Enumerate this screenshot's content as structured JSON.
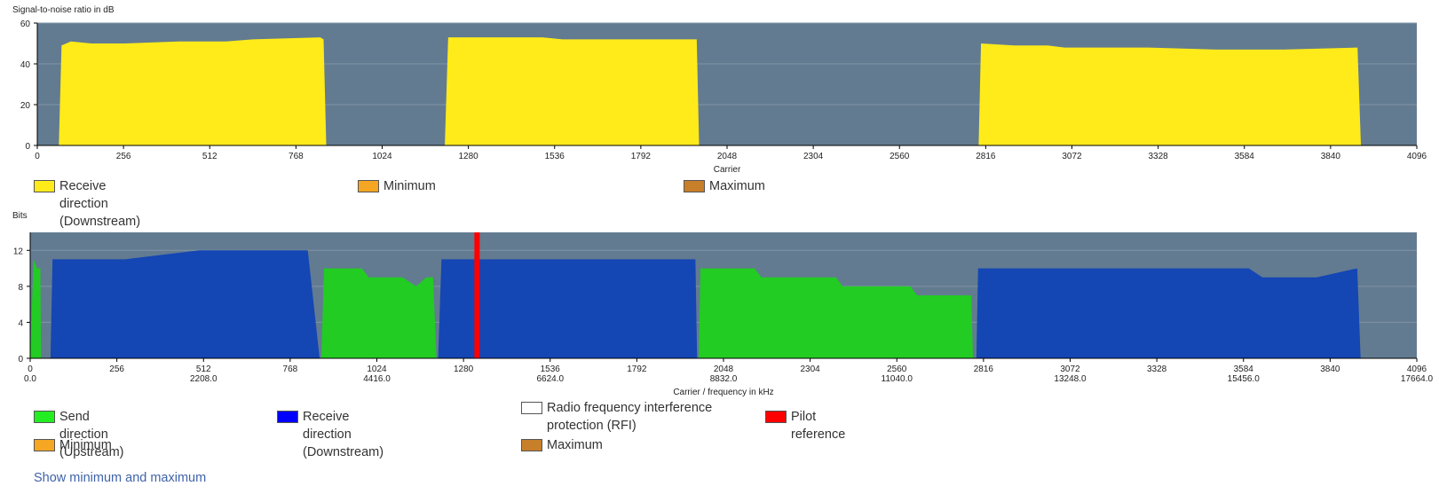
{
  "snr_chart": {
    "title": "Signal-to-noise ratio in dB",
    "xlabel": "Carrier",
    "legend": [
      {
        "label": "Receive direction (Downstream)",
        "color": "#ffeb1a"
      },
      {
        "label": "Minimum",
        "color": "#f5a623"
      },
      {
        "label": "Maximum",
        "color": "#c87f2a"
      }
    ]
  },
  "bits_chart": {
    "title": "Bits",
    "xlabel": "Carrier / frequency in kHz",
    "legend": [
      {
        "label": "Send direction (Upstream)",
        "color": "#22ee22"
      },
      {
        "label": "Receive direction (Downstream)",
        "color": "#0000ff"
      },
      {
        "label": "Radio frequency interference protection (RFI)",
        "color": "#ffffff"
      },
      {
        "label": "Pilot reference",
        "color": "#ff0000"
      },
      {
        "label": "Minimum",
        "color": "#f5a623"
      },
      {
        "label": "Maximum",
        "color": "#c87f2a"
      }
    ]
  },
  "show_minmax_link": "Show minimum and maximum",
  "chart_data": [
    {
      "type": "area",
      "title": "Signal-to-noise ratio in dB",
      "xlabel": "Carrier",
      "ylabel": "",
      "xlim": [
        0,
        4096
      ],
      "ylim": [
        0,
        60
      ],
      "xticks": [
        0,
        256,
        512,
        768,
        1024,
        1280,
        1536,
        1792,
        2048,
        2304,
        2560,
        2816,
        3072,
        3328,
        3584,
        3840,
        4096
      ],
      "xtick_labels": [
        "0",
        "256",
        "512",
        "768",
        "1024",
        "1280",
        "1536",
        "1792",
        "2048",
        "2304",
        "2560",
        "2816",
        "3072",
        "3328",
        "3584",
        "3840",
        "4096"
      ],
      "yticks": [
        0,
        20,
        40,
        60
      ],
      "ytick_labels": [
        "0",
        "20",
        "40",
        "60"
      ],
      "grid": true,
      "background": "#627b91",
      "series": [
        {
          "name": "Receive direction (Downstream)",
          "color": "#ffeb1a",
          "segments": [
            {
              "x": [
                64,
                72,
                100,
                160,
                260,
                420,
                560,
                640,
                840,
                850,
                858
              ],
              "y": [
                0,
                49,
                51,
                50,
                50,
                51,
                51,
                52,
                53,
                52,
                0
              ]
            },
            {
              "x": [
                1210,
                1220,
                1400,
                1500,
                1560,
                1600,
                1700,
                1958,
                1965
              ],
              "y": [
                0,
                53,
                53,
                53,
                52,
                52,
                52,
                52,
                0
              ]
            },
            {
              "x": [
                2795,
                2802,
                2900,
                3000,
                3050,
                3300,
                3500,
                3700,
                3920,
                3930
              ],
              "y": [
                0,
                50,
                49,
                49,
                48,
                48,
                47,
                47,
                48,
                0
              ]
            }
          ]
        }
      ]
    },
    {
      "type": "area",
      "title": "Bits",
      "xlabel": "Carrier / frequency in kHz",
      "ylabel": "",
      "xlim": [
        0,
        4096
      ],
      "ylim": [
        0,
        14
      ],
      "xticks": [
        0,
        256,
        512,
        768,
        1024,
        1280,
        1536,
        1792,
        2048,
        2304,
        2560,
        2816,
        3072,
        3328,
        3584,
        3840,
        4096
      ],
      "xtick_labels": [
        "0",
        "256",
        "512",
        "768",
        "1024",
        "1280",
        "1536",
        "1792",
        "2048",
        "2304",
        "2560",
        "2816",
        "3072",
        "3328",
        "3584",
        "3840",
        "4096"
      ],
      "xtick_labels_secondary": [
        "0.0",
        "",
        "2208.0",
        "",
        "4416.0",
        "",
        "6624.0",
        "",
        "8832.0",
        "",
        "11040.0",
        "",
        "13248.0",
        "",
        "15456.0",
        "",
        "17664.0"
      ],
      "yticks": [
        0,
        4,
        8,
        12
      ],
      "ytick_labels": [
        "0",
        "4",
        "8",
        "12"
      ],
      "grid": true,
      "background": "#627b91",
      "series": [
        {
          "name": "Send direction (Upstream)",
          "color": "#22cc22",
          "segments": [
            {
              "x": [
                0,
                10,
                20,
                30,
                32
              ],
              "y": [
                0,
                11,
                10,
                10,
                0
              ]
            },
            {
              "x": [
                860,
                868,
                980,
                1000,
                1100,
                1140,
                1170,
                1190,
                1200
              ],
              "y": [
                0,
                10,
                10,
                9,
                9,
                8,
                9,
                9,
                0
              ]
            },
            {
              "x": [
                1975,
                1980,
                2140,
                2160,
                2380,
                2400,
                2600,
                2620,
                2780,
                2785
              ],
              "y": [
                0,
                10,
                10,
                9,
                9,
                8,
                8,
                7,
                7,
                0
              ]
            }
          ]
        },
        {
          "name": "Receive direction (Downstream)",
          "color": "#1446b4",
          "segments": [
            {
              "x": [
                60,
                66,
                90,
                180,
                280,
                500,
                600,
                800,
                820,
                855
              ],
              "y": [
                0,
                11,
                11,
                11,
                11,
                12,
                12,
                12,
                12,
                0
              ]
            },
            {
              "x": [
                1205,
                1215,
                1300,
                1400,
                1500,
                1600,
                1750,
                1965,
                1970
              ],
              "y": [
                0,
                11,
                11,
                11,
                11,
                11,
                11,
                11,
                0
              ]
            },
            {
              "x": [
                2795,
                2800,
                3000,
                3200,
                3400,
                3600,
                3640,
                3800,
                3920,
                3930
              ],
              "y": [
                0,
                10,
                10,
                10,
                10,
                10,
                9,
                9,
                10,
                0
              ]
            }
          ]
        },
        {
          "name": "Pilot reference",
          "color": "#ff0000",
          "x": [
            1320
          ],
          "y": [
            14
          ]
        }
      ]
    }
  ]
}
